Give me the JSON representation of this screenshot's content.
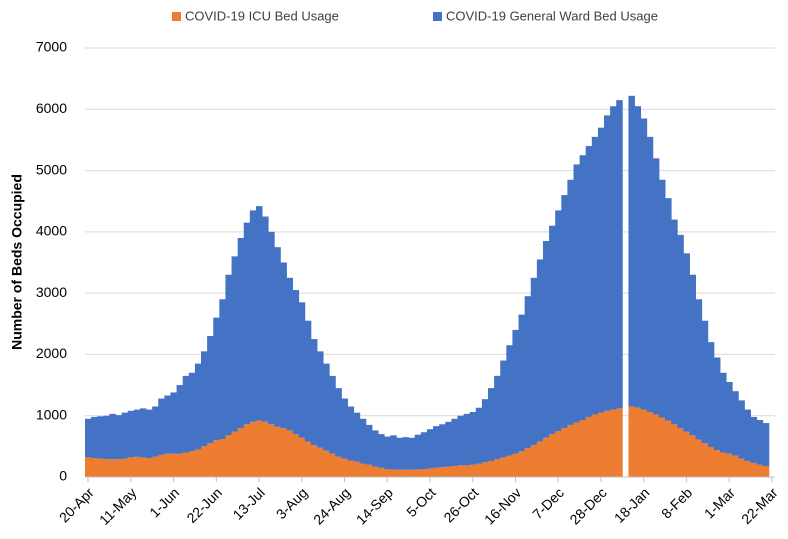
{
  "chart_data": {
    "type": "stacked_bar",
    "y_label": "Number of Beds Occupied",
    "categories": [
      "20-Apr",
      null,
      null,
      null,
      null,
      null,
      null,
      "11-May",
      null,
      null,
      null,
      null,
      null,
      null,
      "1-Jun",
      null,
      null,
      null,
      null,
      null,
      null,
      "22-Jun",
      null,
      null,
      null,
      null,
      null,
      null,
      "13-Jul",
      null,
      null,
      null,
      null,
      null,
      null,
      "3-Aug",
      null,
      null,
      null,
      null,
      null,
      null,
      "24-Aug",
      null,
      null,
      null,
      null,
      null,
      null,
      "14-Sep",
      null,
      null,
      null,
      null,
      null,
      null,
      "5-Oct",
      null,
      null,
      null,
      null,
      null,
      null,
      "26-Oct",
      null,
      null,
      null,
      null,
      null,
      null,
      "16-Nov",
      null,
      null,
      null,
      null,
      null,
      null,
      "7-Dec",
      null,
      null,
      null,
      null,
      null,
      null,
      "28-Dec",
      null,
      null,
      null,
      null,
      null,
      null,
      "18-Jan",
      null,
      null,
      null,
      null,
      null,
      null,
      "8-Feb",
      null,
      null,
      null,
      null,
      null,
      null,
      "1-Mar",
      null,
      null,
      null,
      null,
      null,
      null,
      "22-Mar"
    ],
    "series": [
      {
        "name": "COVID-19 ICU Bed Usage",
        "color": "#ed7d31",
        "values": [
          320,
          310,
          300,
          290,
          290,
          290,
          300,
          320,
          330,
          320,
          310,
          330,
          360,
          380,
          380,
          380,
          400,
          420,
          450,
          500,
          550,
          600,
          620,
          680,
          740,
          800,
          860,
          900,
          920,
          900,
          860,
          820,
          800,
          760,
          700,
          640,
          580,
          520,
          480,
          430,
          380,
          330,
          300,
          270,
          250,
          220,
          200,
          170,
          150,
          130,
          120,
          120,
          120,
          120,
          125,
          130,
          140,
          150,
          160,
          170,
          180,
          190,
          190,
          200,
          220,
          240,
          260,
          290,
          320,
          350,
          380,
          420,
          470,
          520,
          580,
          640,
          700,
          750,
          800,
          850,
          890,
          930,
          980,
          1020,
          1050,
          1080,
          1100,
          1120,
          null,
          1150,
          1130,
          1100,
          1060,
          1020,
          970,
          920,
          860,
          800,
          740,
          680,
          610,
          550,
          490,
          440,
          400,
          380,
          350,
          300,
          260,
          230,
          200,
          180,
          null
        ]
      },
      {
        "name": "COVID-19 General Ward Bed Usage",
        "color": "#4472c4",
        "values": [
          630,
          670,
          690,
          710,
          740,
          720,
          750,
          760,
          770,
          800,
          790,
          820,
          920,
          950,
          1000,
          1120,
          1250,
          1280,
          1400,
          1550,
          1750,
          2000,
          2280,
          2620,
          2860,
          3100,
          3290,
          3450,
          3500,
          3350,
          3140,
          2930,
          2700,
          2490,
          2350,
          2210,
          1970,
          1730,
          1570,
          1420,
          1270,
          1120,
          980,
          880,
          800,
          730,
          650,
          590,
          550,
          530,
          560,
          520,
          530,
          520,
          565,
          600,
          640,
          680,
          700,
          730,
          770,
          810,
          840,
          860,
          910,
          1030,
          1190,
          1360,
          1580,
          1800,
          2020,
          2230,
          2480,
          2730,
          2970,
          3210,
          3400,
          3600,
          3800,
          4000,
          4210,
          4320,
          4420,
          4530,
          4650,
          4820,
          4950,
          5030,
          null,
          5070,
          4920,
          4750,
          4490,
          4180,
          3880,
          3630,
          3340,
          3150,
          2910,
          2620,
          2290,
          2000,
          1710,
          1510,
          1300,
          1170,
          1050,
          950,
          840,
          750,
          730,
          700,
          null
        ]
      }
    ],
    "ylim": [
      0,
      7000
    ],
    "yticks": [
      0,
      1000,
      2000,
      3000,
      4000,
      5000,
      6000,
      7000
    ],
    "grid": true,
    "legend": "top"
  }
}
